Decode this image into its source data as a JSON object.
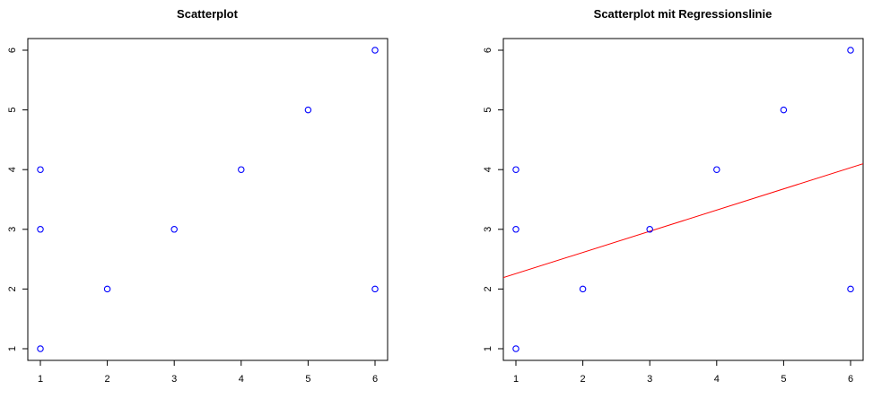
{
  "chart_data": [
    {
      "type": "scatter",
      "title": "Scatterplot",
      "xlabel": "",
      "ylabel": "",
      "xlim": [
        1,
        6
      ],
      "ylim": [
        1,
        6
      ],
      "xticks": [
        "1",
        "2",
        "3",
        "4",
        "5",
        "6"
      ],
      "yticks": [
        "1",
        "2",
        "3",
        "4",
        "5",
        "6"
      ],
      "grid": false,
      "point_color": "#0000ff",
      "points": [
        {
          "x": 1,
          "y": 1
        },
        {
          "x": 1,
          "y": 3
        },
        {
          "x": 1,
          "y": 4
        },
        {
          "x": 2,
          "y": 2
        },
        {
          "x": 3,
          "y": 3
        },
        {
          "x": 4,
          "y": 4
        },
        {
          "x": 5,
          "y": 5
        },
        {
          "x": 6,
          "y": 6
        },
        {
          "x": 6,
          "y": 2
        }
      ]
    },
    {
      "type": "scatter",
      "title": "Scatterplot mit Regressionslinie",
      "xlabel": "",
      "ylabel": "",
      "xlim": [
        1,
        6
      ],
      "ylim": [
        1,
        6
      ],
      "xticks": [
        "1",
        "2",
        "3",
        "4",
        "5",
        "6"
      ],
      "yticks": [
        "1",
        "2",
        "3",
        "4",
        "5",
        "6"
      ],
      "grid": false,
      "point_color": "#0000ff",
      "points": [
        {
          "x": 1,
          "y": 1
        },
        {
          "x": 1,
          "y": 3
        },
        {
          "x": 1,
          "y": 4
        },
        {
          "x": 2,
          "y": 2
        },
        {
          "x": 3,
          "y": 3
        },
        {
          "x": 4,
          "y": 4
        },
        {
          "x": 5,
          "y": 5
        },
        {
          "x": 6,
          "y": 6
        },
        {
          "x": 6,
          "y": 2
        }
      ],
      "regression_line": {
        "color": "#ff0000",
        "intercept": 1.9032,
        "slope": 0.3548
      }
    }
  ]
}
